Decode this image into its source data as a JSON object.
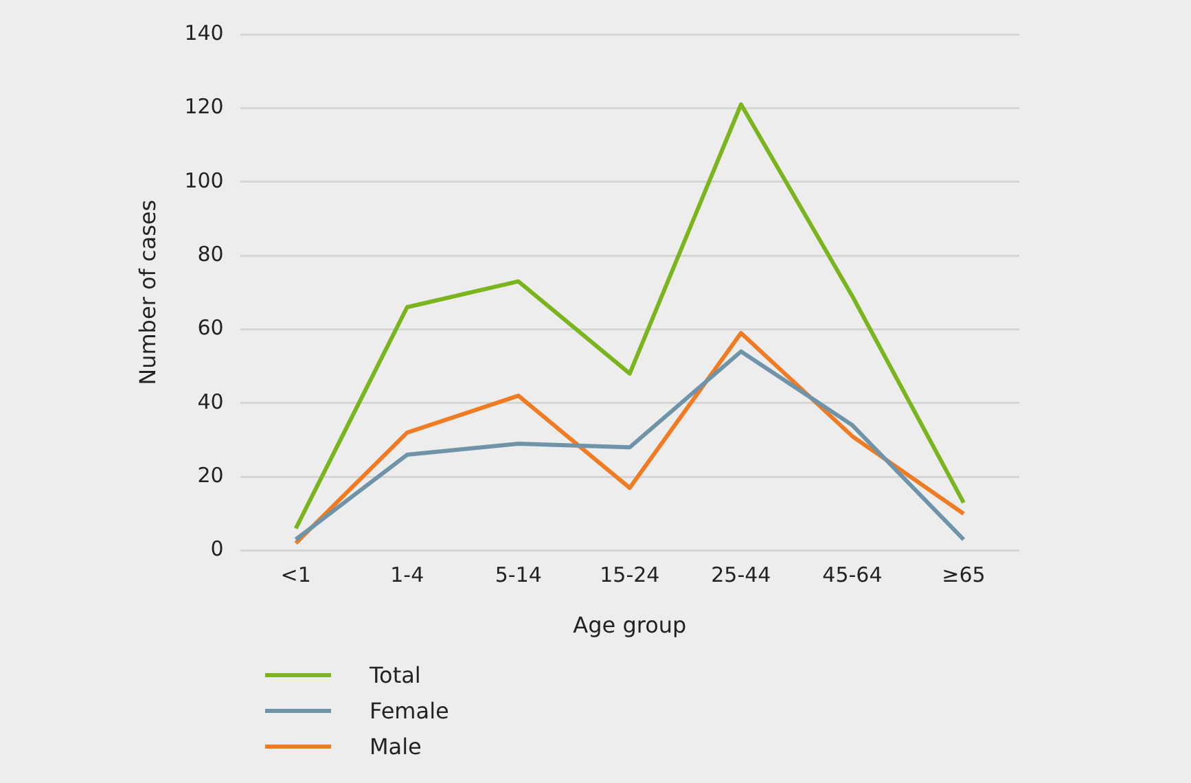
{
  "chart_data": {
    "type": "line",
    "xlabel": "Age group",
    "ylabel": "Number of cases",
    "categories": [
      "<1",
      "1-4",
      "5-14",
      "15-24",
      "25-44",
      "45-64",
      "≥65"
    ],
    "series": [
      {
        "name": "Total",
        "color": "#7ab51d",
        "values": [
          6,
          66,
          73,
          48,
          121,
          69,
          13
        ]
      },
      {
        "name": "Female",
        "color": "#6f93a8",
        "values": [
          3,
          26,
          29,
          28,
          54,
          34,
          3
        ]
      },
      {
        "name": "Male",
        "color": "#f07b22",
        "values": [
          2,
          32,
          42,
          17,
          59,
          31,
          10
        ]
      }
    ],
    "ylim": [
      0,
      140
    ],
    "yticks": [
      0,
      20,
      40,
      60,
      80,
      100,
      120,
      140
    ],
    "grid": "y",
    "legend": "bottom left",
    "marker": "none",
    "line_style": "solid"
  }
}
